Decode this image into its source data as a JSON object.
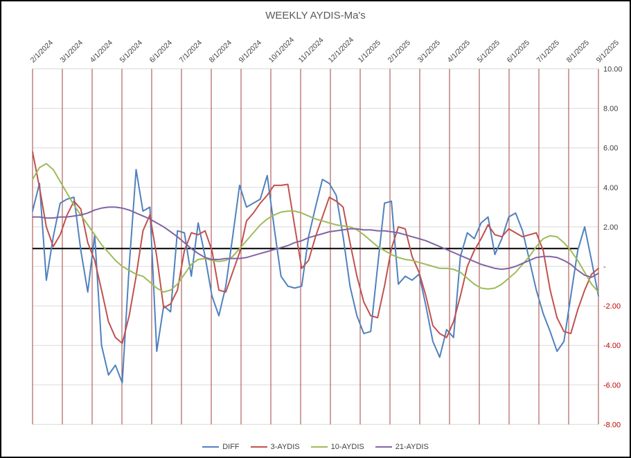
{
  "title": "WEEKLY AYDIS-Ma's",
  "chart_data": {
    "type": "line",
    "title": "WEEKLY AYDIS-Ma's",
    "x_labels": [
      "2/1/2024",
      "3/1/2024",
      "4/1/2024",
      "5/1/2024",
      "6/1/2024",
      "7/1/2024",
      "8/1/2024",
      "9/1/2024",
      "10/1/2024",
      "11/1/2024",
      "12/1/2024",
      "1/1/2025",
      "2/1/2025",
      "3/1/2025",
      "4/1/2025",
      "5/1/2025",
      "6/1/2025",
      "7/1/2025",
      "8/1/2025",
      "9/1/2025"
    ],
    "y_ticks": [
      "10.00",
      "8.00",
      "6.00",
      "4.00",
      "2.00",
      "-",
      "-2.00",
      "-4.00",
      "-6.00",
      "-8.00"
    ],
    "ylim": [
      -8,
      10
    ],
    "x_frequency": "weekly",
    "legend_position": "bottom",
    "grid": true,
    "gridline_color_vertical": "#A0423C",
    "gridline_color_horizontal": "#D9D9D9",
    "negative_tick_color": "#C00000",
    "tick_label_color": "#404040",
    "title_color": "#595959",
    "baseline": {
      "value": 0.9,
      "color": "#000000",
      "start_week": 0,
      "end_week": 79
    },
    "series": [
      {
        "name": "DIFF",
        "color": "#4F81BD",
        "values": [
          2.8,
          4.2,
          -0.7,
          1.5,
          3.2,
          3.4,
          3.5,
          0.8,
          -1.3,
          1.6,
          -4.0,
          -5.5,
          -5.0,
          -5.9,
          0.0,
          4.9,
          2.8,
          3.0,
          -4.3,
          -2.0,
          -2.3,
          1.8,
          1.7,
          -0.5,
          2.2,
          0.5,
          -1.5,
          -2.5,
          -1.0,
          1.5,
          4.1,
          3.0,
          3.2,
          3.4,
          4.6,
          2.0,
          -0.5,
          -1.0,
          -1.1,
          -1.0,
          1.5,
          3.0,
          4.4,
          4.2,
          3.6,
          1.5,
          -1.0,
          -2.5,
          -3.4,
          -3.3,
          0.0,
          3.2,
          3.3,
          -0.9,
          -0.5,
          -0.7,
          -0.4,
          -2.0,
          -3.8,
          -4.6,
          -3.2,
          -3.6,
          0.5,
          1.7,
          1.4,
          2.2,
          2.5,
          0.6,
          1.4,
          2.5,
          2.7,
          1.8,
          0.3,
          -1.2,
          -2.4,
          -3.3,
          -4.3,
          -3.8,
          -1.5,
          0.8,
          2.0,
          0.3,
          -1.5
        ]
      },
      {
        "name": "3-AYDIS",
        "color": "#C0504D",
        "values": [
          5.8,
          4.0,
          2.0,
          1.0,
          1.6,
          2.6,
          3.3,
          2.9,
          1.2,
          0.3,
          -1.2,
          -2.8,
          -3.6,
          -3.9,
          -2.5,
          -0.5,
          1.8,
          2.6,
          0.5,
          -2.1,
          -1.9,
          -1.2,
          0.8,
          1.7,
          1.6,
          1.8,
          0.8,
          -1.2,
          -1.3,
          -0.3,
          0.7,
          2.3,
          2.7,
          3.2,
          3.6,
          4.1,
          4.1,
          4.15,
          2.0,
          -0.1,
          0.3,
          1.5,
          2.5,
          3.5,
          3.3,
          3.0,
          1.2,
          -0.5,
          -1.8,
          -2.5,
          -2.6,
          -1.0,
          0.9,
          2.0,
          1.9,
          0.5,
          -0.3,
          -1.5,
          -3.0,
          -3.4,
          -3.6,
          -2.8,
          -1.5,
          0.0,
          0.8,
          1.4,
          2.1,
          1.6,
          1.5,
          1.9,
          1.7,
          1.5,
          1.6,
          1.7,
          0.8,
          -1.2,
          -2.6,
          -3.3,
          -3.4,
          -2.2,
          -1.2,
          -0.4,
          -0.1
        ]
      },
      {
        "name": "10-AYDIS",
        "color": "#9BBB59",
        "values": [
          4.4,
          5.0,
          5.2,
          4.9,
          4.3,
          3.7,
          3.1,
          2.6,
          2.1,
          1.6,
          1.1,
          0.7,
          0.3,
          0.0,
          -0.2,
          -0.4,
          -0.5,
          -0.8,
          -1.1,
          -1.3,
          -1.2,
          -0.9,
          -0.4,
          0.1,
          0.35,
          0.4,
          0.3,
          0.25,
          0.3,
          0.5,
          0.9,
          1.3,
          1.7,
          2.1,
          2.4,
          2.6,
          2.75,
          2.8,
          2.8,
          2.7,
          2.55,
          2.4,
          2.3,
          2.2,
          2.1,
          2.05,
          2.0,
          1.85,
          1.6,
          1.3,
          1.0,
          0.8,
          0.6,
          0.45,
          0.35,
          0.3,
          0.2,
          0.1,
          0.0,
          -0.1,
          -0.1,
          -0.15,
          -0.3,
          -0.6,
          -0.9,
          -1.1,
          -1.15,
          -1.1,
          -0.9,
          -0.6,
          -0.3,
          0.1,
          0.5,
          1.0,
          1.4,
          1.55,
          1.5,
          1.2,
          0.8,
          0.3,
          -0.3,
          -0.9,
          -1.3
        ]
      },
      {
        "name": "21-AYDIS",
        "color": "#8064A2",
        "values": [
          2.5,
          2.5,
          2.45,
          2.45,
          2.5,
          2.5,
          2.55,
          2.6,
          2.7,
          2.85,
          2.95,
          3.0,
          3.0,
          2.95,
          2.85,
          2.7,
          2.55,
          2.4,
          2.2,
          2.0,
          1.75,
          1.5,
          1.2,
          0.9,
          0.65,
          0.45,
          0.35,
          0.35,
          0.4,
          0.4,
          0.4,
          0.45,
          0.55,
          0.65,
          0.75,
          0.85,
          0.95,
          1.05,
          1.2,
          1.3,
          1.45,
          1.55,
          1.65,
          1.75,
          1.8,
          1.85,
          1.9,
          1.9,
          1.85,
          1.85,
          1.8,
          1.8,
          1.75,
          1.7,
          1.6,
          1.5,
          1.4,
          1.3,
          1.15,
          1.0,
          0.85,
          0.7,
          0.55,
          0.4,
          0.25,
          0.1,
          0.0,
          -0.1,
          -0.15,
          -0.1,
          0.0,
          0.15,
          0.3,
          0.45,
          0.5,
          0.5,
          0.45,
          0.3,
          0.1,
          -0.2,
          -0.45,
          -0.55,
          -0.35
        ]
      }
    ]
  }
}
